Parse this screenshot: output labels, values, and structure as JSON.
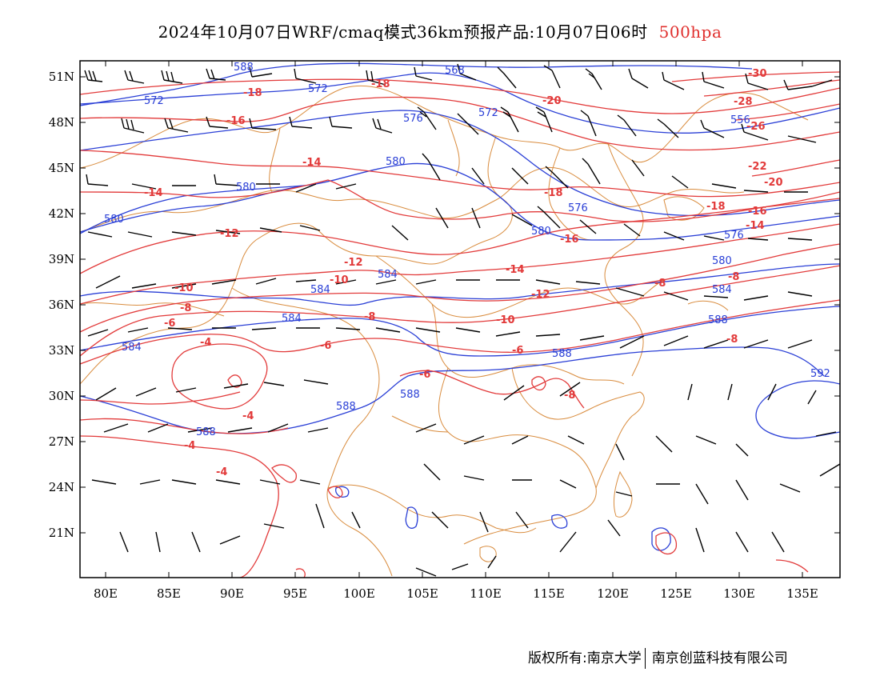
{
  "title": {
    "main": "2024年10月07日WRF/cmaq模式36km预报产品:10月07日06时",
    "level": "500hpa"
  },
  "axes": {
    "lat_labels": [
      "51N",
      "48N",
      "45N",
      "42N",
      "39N",
      "36N",
      "33N",
      "30N",
      "27N",
      "24N",
      "21N"
    ],
    "lon_labels": [
      "80E",
      "85E",
      "90E",
      "95E",
      "100E",
      "105E",
      "110E",
      "115E",
      "120E",
      "125E",
      "130E",
      "135E"
    ]
  },
  "colors": {
    "height_contour": "#2a3fd6",
    "temperature_contour": "#e23a3a",
    "boundary": "#d98c3e",
    "wind_barb": "#000000"
  },
  "height_labels": [
    "588",
    "572",
    "572",
    "568",
    "576",
    "572",
    "556",
    "580",
    "580",
    "580",
    "576",
    "580",
    "576",
    "580",
    "584",
    "584",
    "584",
    "584",
    "588",
    "584",
    "588",
    "588",
    "588",
    "588",
    "592"
  ],
  "temperature_labels": [
    "-18",
    "-16",
    "-18",
    "-20",
    "-30",
    "-28",
    "-26",
    "-14",
    "-14",
    "-18",
    "-22",
    "-20",
    "-18",
    "-16",
    "-14",
    "-12",
    "-12",
    "-16",
    "-14",
    "-10",
    "-10",
    "-12",
    "-8",
    "-6",
    "-8",
    "-10",
    "-8",
    "-6",
    "-4",
    "-6",
    "-8",
    "-8",
    "-6",
    "-8",
    "-4",
    "-4",
    "-4"
  ],
  "footer": {
    "left": "版权所有:南京大学",
    "right": "南京创蓝科技有限公司"
  }
}
